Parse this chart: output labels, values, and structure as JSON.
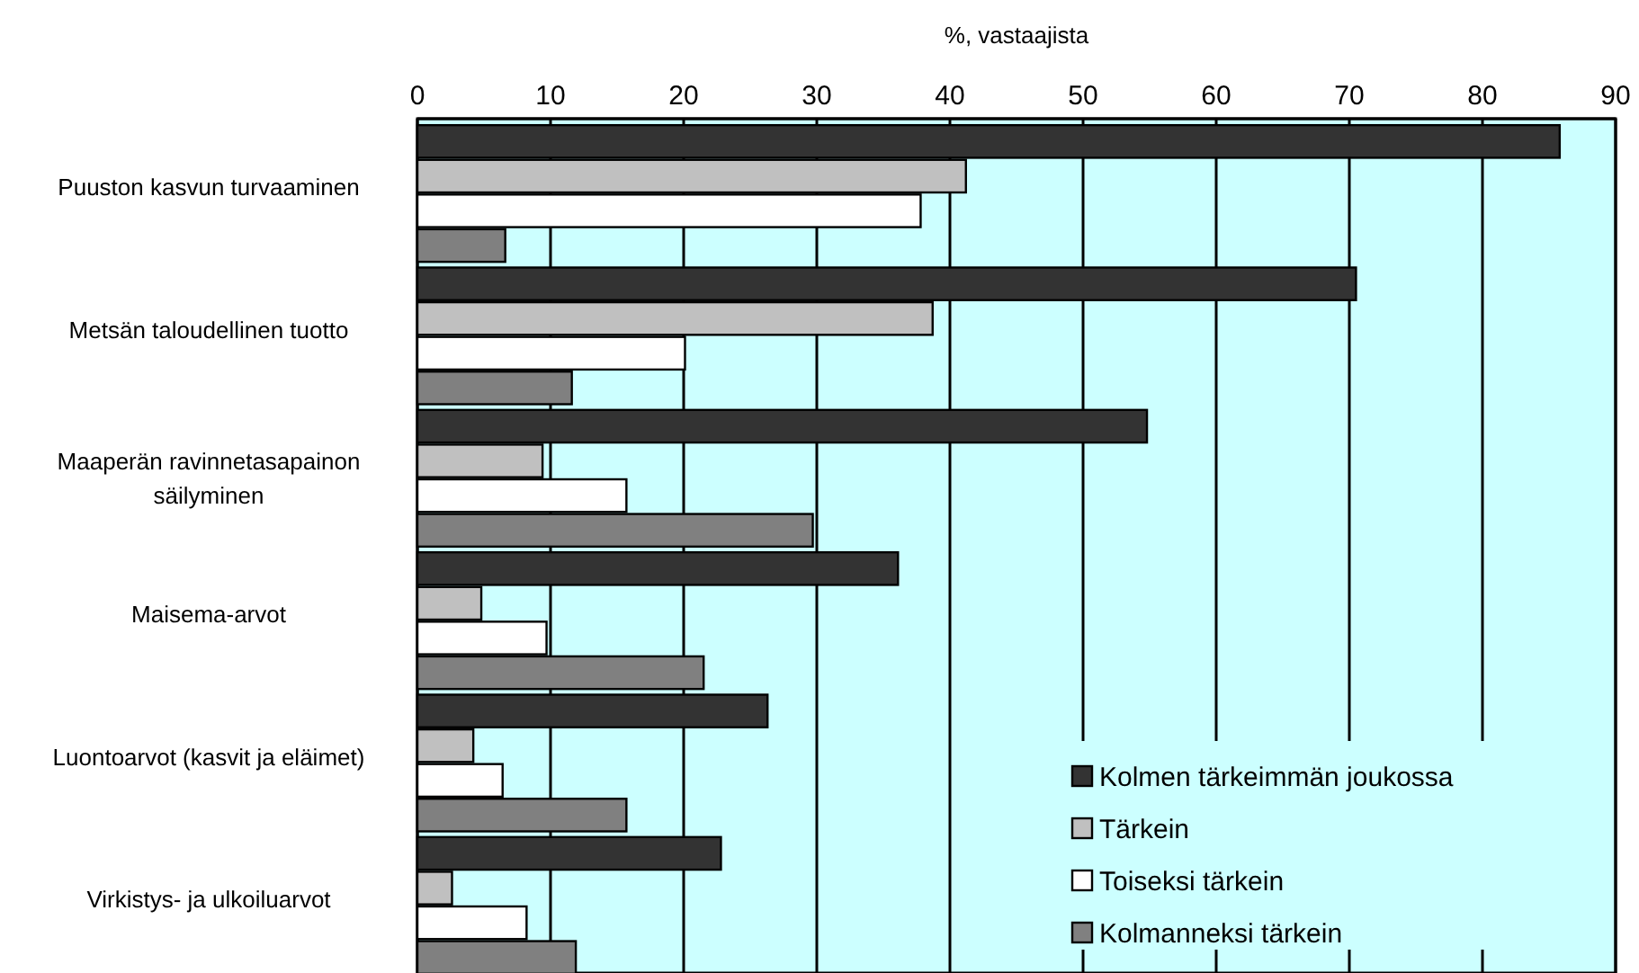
{
  "chart_data": {
    "type": "bar",
    "orientation": "horizontal",
    "xlabel": "%, vastaajista",
    "categories": [
      "Puuston kasvun turvaaminen",
      "Metsän taloudellinen tuotto",
      "Maaperän ravinnetasapainon säilyminen",
      "Maisema-arvot",
      "Luontoarvot (kasvit ja eläimet)",
      "Virkistys- ja ulkoiluarvot"
    ],
    "series": [
      {
        "name": "Kolmen tärkeimmän joukossa",
        "color": "#333333",
        "values": [
          85.8,
          70.5,
          54.8,
          36.1,
          26.3,
          22.8
        ]
      },
      {
        "name": "Tärkein",
        "color": "#c0c0c0",
        "values": [
          41.2,
          38.7,
          9.4,
          4.8,
          4.2,
          2.6
        ]
      },
      {
        "name": "Toiseksi tärkein",
        "color": "#ffffff",
        "values": [
          37.8,
          20.1,
          15.7,
          9.7,
          6.4,
          8.2
        ]
      },
      {
        "name": "Kolmanneksi tärkein",
        "color": "#808080",
        "values": [
          6.6,
          11.6,
          29.7,
          21.5,
          15.7,
          11.9
        ]
      }
    ],
    "xlim": [
      0,
      90
    ],
    "xticks": [
      0,
      10,
      20,
      30,
      40,
      50,
      60,
      70,
      80,
      90
    ],
    "grid": "x",
    "legend": "bottom right"
  }
}
